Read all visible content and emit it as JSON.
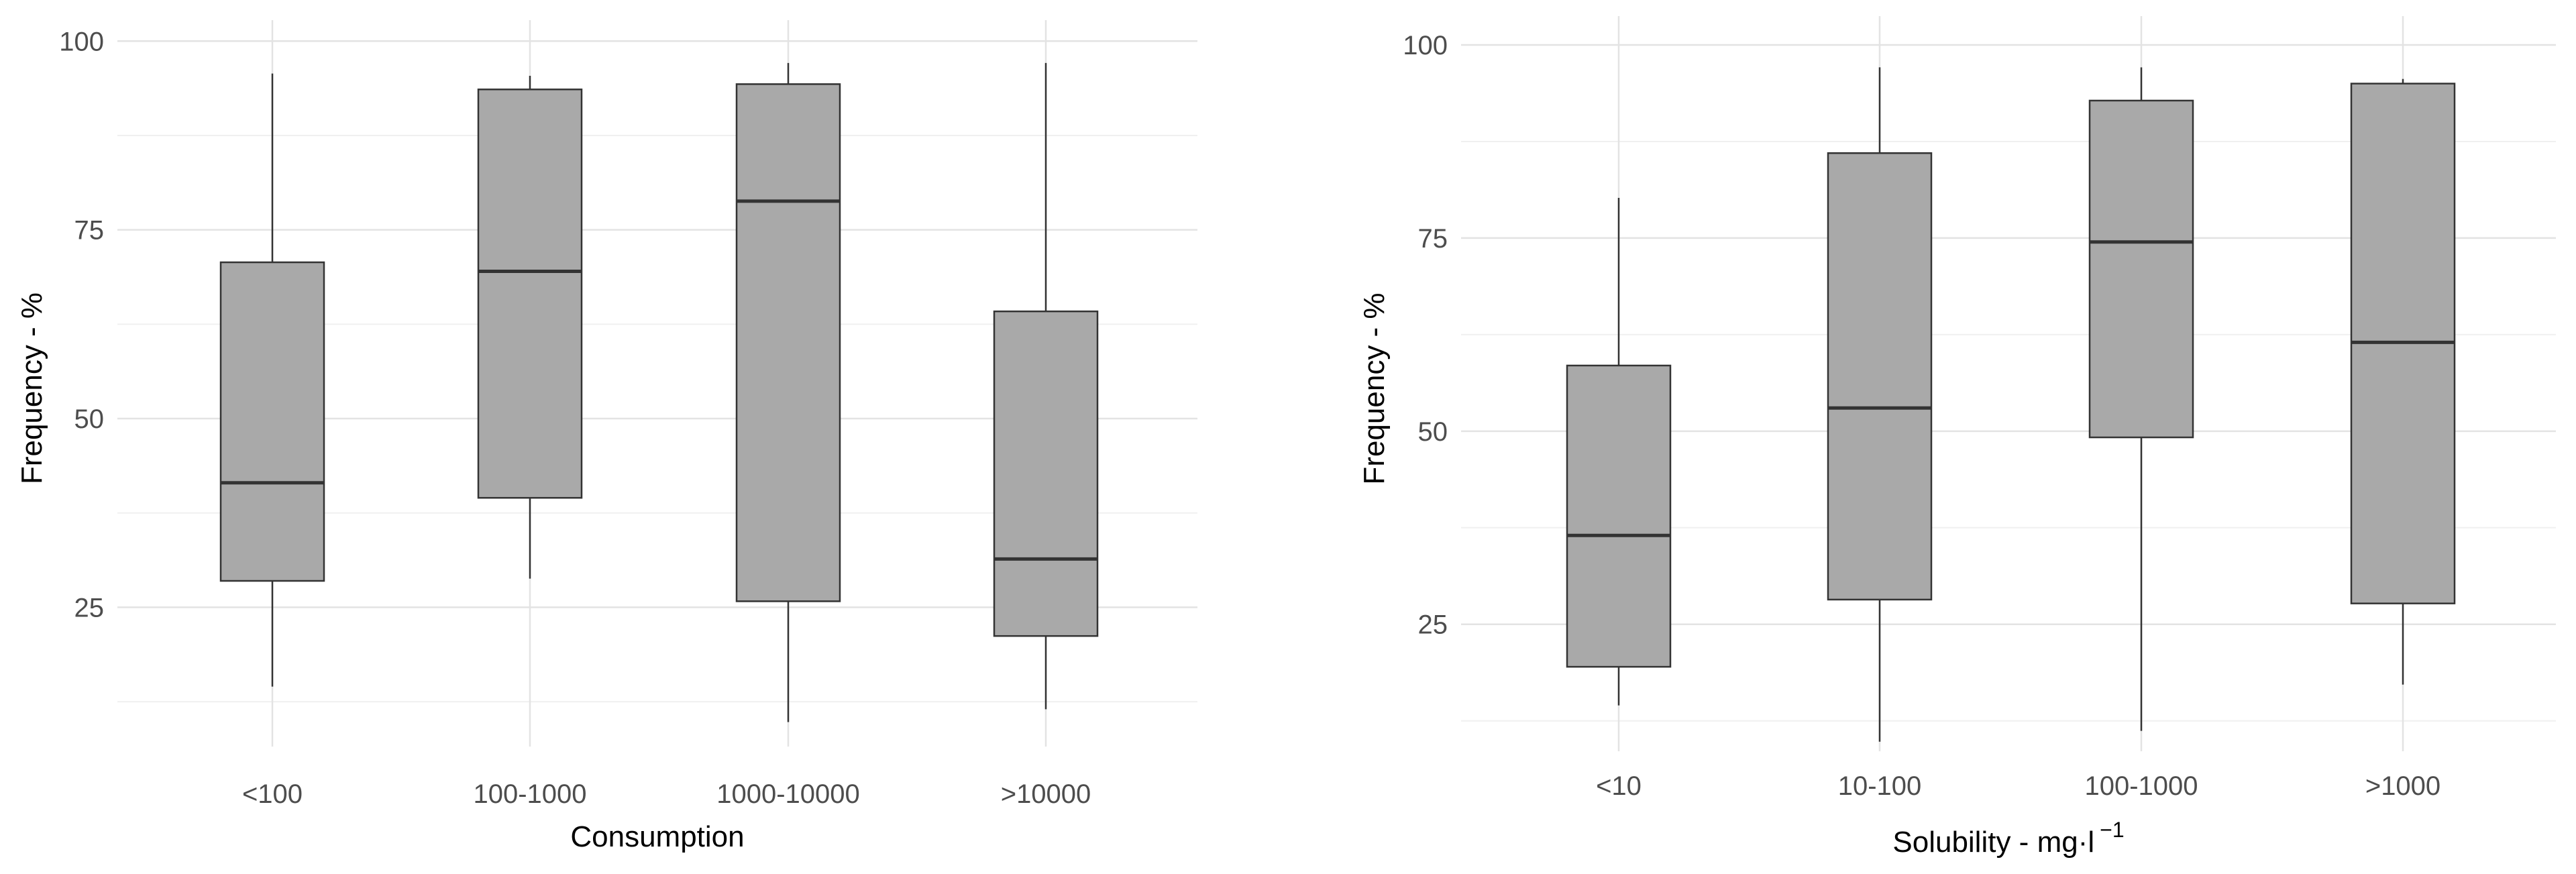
{
  "chart_data": [
    {
      "type": "boxplot",
      "xlabel": "Consumption",
      "ylabel": "Frequency - %",
      "ylim": [
        7,
        101
      ],
      "yticks": [
        25,
        50,
        75,
        100
      ],
      "grid": true,
      "categories": [
        "<100",
        "100-1000",
        "1000-10000",
        ">10000"
      ],
      "boxes": [
        {
          "min": 14.5,
          "q1": 28.5,
          "median": 41.5,
          "q3": 70.7,
          "max": 95.7
        },
        {
          "min": 28.8,
          "q1": 39.5,
          "median": 69.5,
          "q3": 93.6,
          "max": 95.4
        },
        {
          "min": 9.8,
          "q1": 25.8,
          "median": 78.8,
          "q3": 94.3,
          "max": 97.1
        },
        {
          "min": 11.5,
          "q1": 21.2,
          "median": 31.4,
          "q3": 64.2,
          "max": 97.1
        }
      ],
      "box_fill": "#a9a9a9",
      "box_stroke": "#333333"
    },
    {
      "type": "boxplot",
      "xlabel": "Solubility - mg·l",
      "xlabel_superscript": "−1",
      "ylabel": "Frequency - %",
      "ylim": [
        9,
        102
      ],
      "yticks": [
        25,
        50,
        75,
        100
      ],
      "grid": true,
      "categories": [
        "<10",
        "10-100",
        "100-1000",
        ">1000"
      ],
      "boxes": [
        {
          "min": 14.5,
          "q1": 19.5,
          "median": 36.5,
          "q3": 58.5,
          "max": 80.2
        },
        {
          "min": 9.8,
          "q1": 28.2,
          "median": 53.0,
          "q3": 86.0,
          "max": 97.1
        },
        {
          "min": 11.2,
          "q1": 49.2,
          "median": 74.5,
          "q3": 92.8,
          "max": 97.1
        },
        {
          "min": 17.2,
          "q1": 27.7,
          "median": 61.5,
          "q3": 95.0,
          "max": 95.6
        }
      ],
      "box_fill": "#a9a9a9",
      "box_stroke": "#333333"
    }
  ]
}
